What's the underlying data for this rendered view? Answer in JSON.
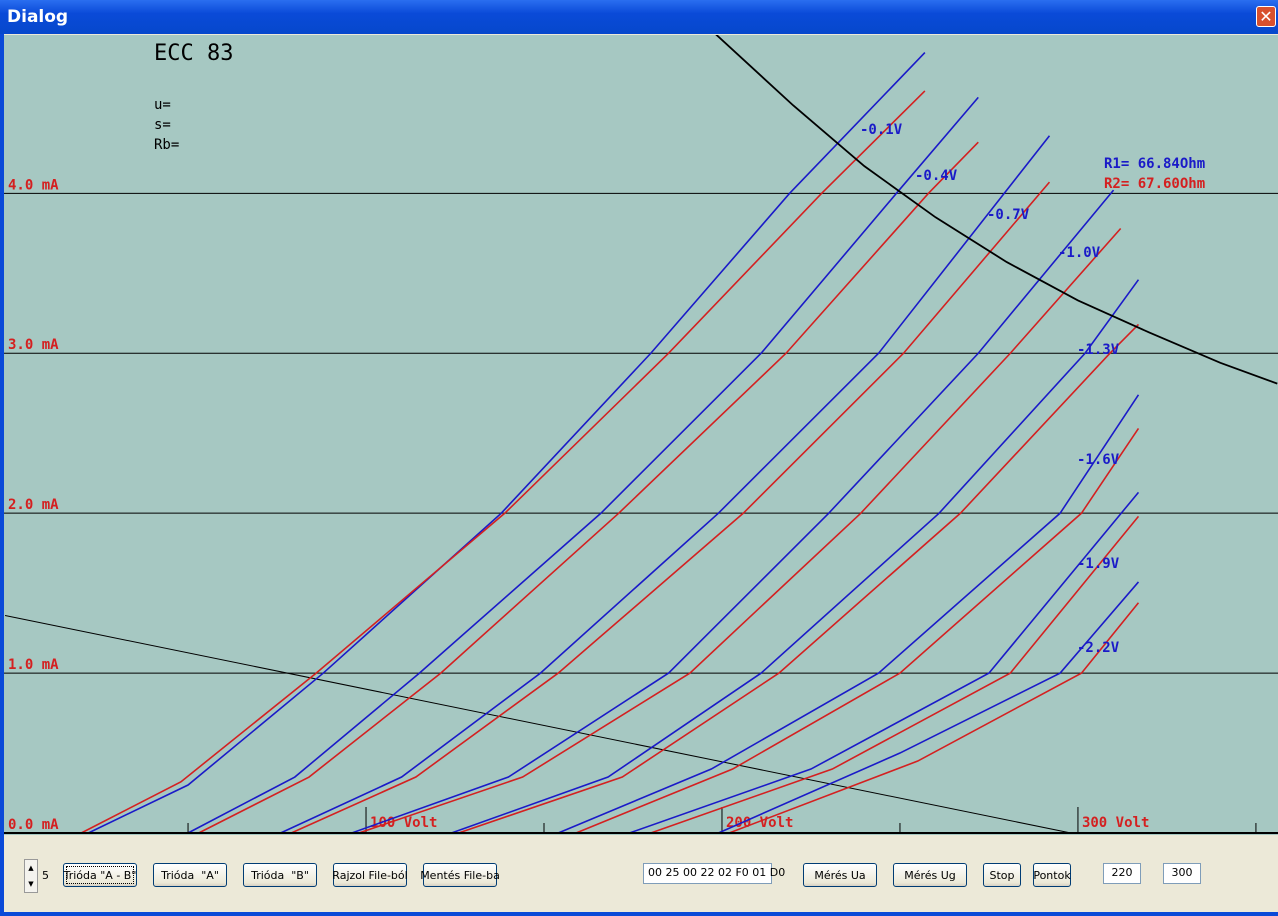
{
  "window": {
    "title": "Dialog"
  },
  "chart_data": {
    "type": "line",
    "title": "ECC 83",
    "params": [
      "u=",
      "s=",
      "Rb="
    ],
    "xlim": [
      -1.7,
      356.2
    ],
    "ylim": [
      0,
      4.99
    ],
    "yticks": [
      {
        "value": 0,
        "label": "0.0 mA"
      },
      {
        "value": 1,
        "label": "1.0 mA"
      },
      {
        "value": 2,
        "label": "2.0 mA"
      },
      {
        "value": 3,
        "label": "3.0 mA"
      },
      {
        "value": 4,
        "label": "4.0 mA"
      }
    ],
    "xticks": [
      {
        "value": 100,
        "label": "100 Volt"
      },
      {
        "value": 200,
        "label": "200 Volt"
      },
      {
        "value": 300,
        "label": "300 Volt"
      }
    ],
    "xminorticks": [
      50,
      150,
      250,
      350
    ],
    "grid": true,
    "series": [
      {
        "label": "-0.1V",
        "color": "#1a1ac8",
        "x": [
          22,
          50,
          88,
          138,
          180,
          219,
          257
        ],
        "values": [
          0,
          0.3,
          1.0,
          2.0,
          3.0,
          4.0,
          4.88
        ]
      },
      {
        "color": "#d42020",
        "x": [
          20,
          48,
          86,
          139,
          185,
          228,
          257
        ],
        "values": [
          0,
          0.32,
          1.0,
          2.0,
          3.0,
          4.0,
          4.64
        ]
      },
      {
        "label": "-0.4V",
        "color": "#1a1ac8",
        "x": [
          50,
          80,
          115,
          166,
          211,
          249,
          272
        ],
        "values": [
          0,
          0.35,
          1.0,
          2.0,
          3.0,
          4.0,
          4.6
        ]
      },
      {
        "color": "#d42020",
        "x": [
          53,
          84,
          121,
          171,
          218,
          258,
          272
        ],
        "values": [
          0,
          0.35,
          1.0,
          2.0,
          3.0,
          4.0,
          4.32
        ]
      },
      {
        "label": "-0.7V",
        "color": "#1a1ac8",
        "x": [
          76,
          110,
          149,
          199,
          244,
          292
        ],
        "values": [
          0,
          0.35,
          1.0,
          2.0,
          3.0,
          4.36
        ]
      },
      {
        "color": "#d42020",
        "x": [
          79,
          114,
          154,
          206,
          251,
          292
        ],
        "values": [
          0,
          0.35,
          1.0,
          2.0,
          3.0,
          4.07
        ]
      },
      {
        "label": "-1.0V",
        "color": "#1a1ac8",
        "x": [
          96,
          140,
          185,
          230,
          272,
          310
        ],
        "values": [
          0,
          0.35,
          1.0,
          2.0,
          3.0,
          4.02
        ]
      },
      {
        "color": "#d42020",
        "x": [
          98,
          144,
          191,
          239,
          281,
          312
        ],
        "values": [
          0,
          0.35,
          1.0,
          2.0,
          3.0,
          3.78
        ]
      },
      {
        "label": "-1.3V",
        "color": "#1a1ac8",
        "x": [
          124,
          168,
          211,
          261,
          302,
          317
        ],
        "values": [
          0,
          0.35,
          1.0,
          2.0,
          3.0,
          3.46
        ]
      },
      {
        "color": "#d42020",
        "x": [
          126,
          172,
          216,
          267,
          309,
          317
        ],
        "values": [
          0,
          0.35,
          1.0,
          2.0,
          3.0,
          3.18
        ]
      },
      {
        "label": "-1.6V",
        "color": "#1a1ac8",
        "x": [
          154,
          197,
          244,
          295,
          317
        ],
        "values": [
          0,
          0.4,
          1.0,
          2.0,
          2.74
        ]
      },
      {
        "color": "#d42020",
        "x": [
          159,
          203,
          250,
          301,
          317
        ],
        "values": [
          0,
          0.4,
          1.0,
          2.0,
          2.53
        ]
      },
      {
        "label": "-1.9V",
        "color": "#1a1ac8",
        "x": [
          174,
          225,
          275,
          317
        ],
        "values": [
          0,
          0.4,
          1.0,
          2.13
        ]
      },
      {
        "color": "#d42020",
        "x": [
          180,
          231,
          281,
          317
        ],
        "values": [
          0,
          0.4,
          1.0,
          1.98
        ]
      },
      {
        "label": "-2.2V",
        "color": "#1a1ac8",
        "x": [
          199,
          250,
          295,
          317
        ],
        "values": [
          0,
          0.5,
          1.0,
          1.57
        ]
      },
      {
        "color": "#d42020",
        "x": [
          202,
          255,
          301,
          317
        ],
        "values": [
          0,
          0.45,
          1.0,
          1.44
        ]
      }
    ],
    "load_line": {
      "color": "#000000",
      "x": [
        -1.4,
        298
      ],
      "values": [
        1.36,
        0
      ]
    },
    "power_curve": {
      "color": "#000000",
      "x": [
        198,
        220,
        240,
        260,
        280,
        300,
        320,
        340,
        356
      ],
      "values": [
        5.0,
        4.55,
        4.17,
        3.85,
        3.57,
        3.33,
        3.13,
        2.94,
        2.81
      ]
    },
    "annotations": [
      {
        "text": "R1= 66.84Ohm",
        "color": "#1a1ac8"
      },
      {
        "text": "R2= 67.60Ohm",
        "color": "#d42020"
      }
    ]
  },
  "toolbar": {
    "spinner": "5",
    "buttons": [
      "Trióda \"A - B\"",
      "Trióda  \"A\"",
      "Trióda  \"B\"",
      "Rajzol File-ból",
      "Mentés File-ba"
    ],
    "hex_field": "00 25 00 22 02 F0 01 D0",
    "buttons2": [
      "Mérés Ua",
      "Mérés Ug",
      "Stop",
      "Pontok"
    ],
    "inputs": [
      "220",
      "300"
    ]
  }
}
